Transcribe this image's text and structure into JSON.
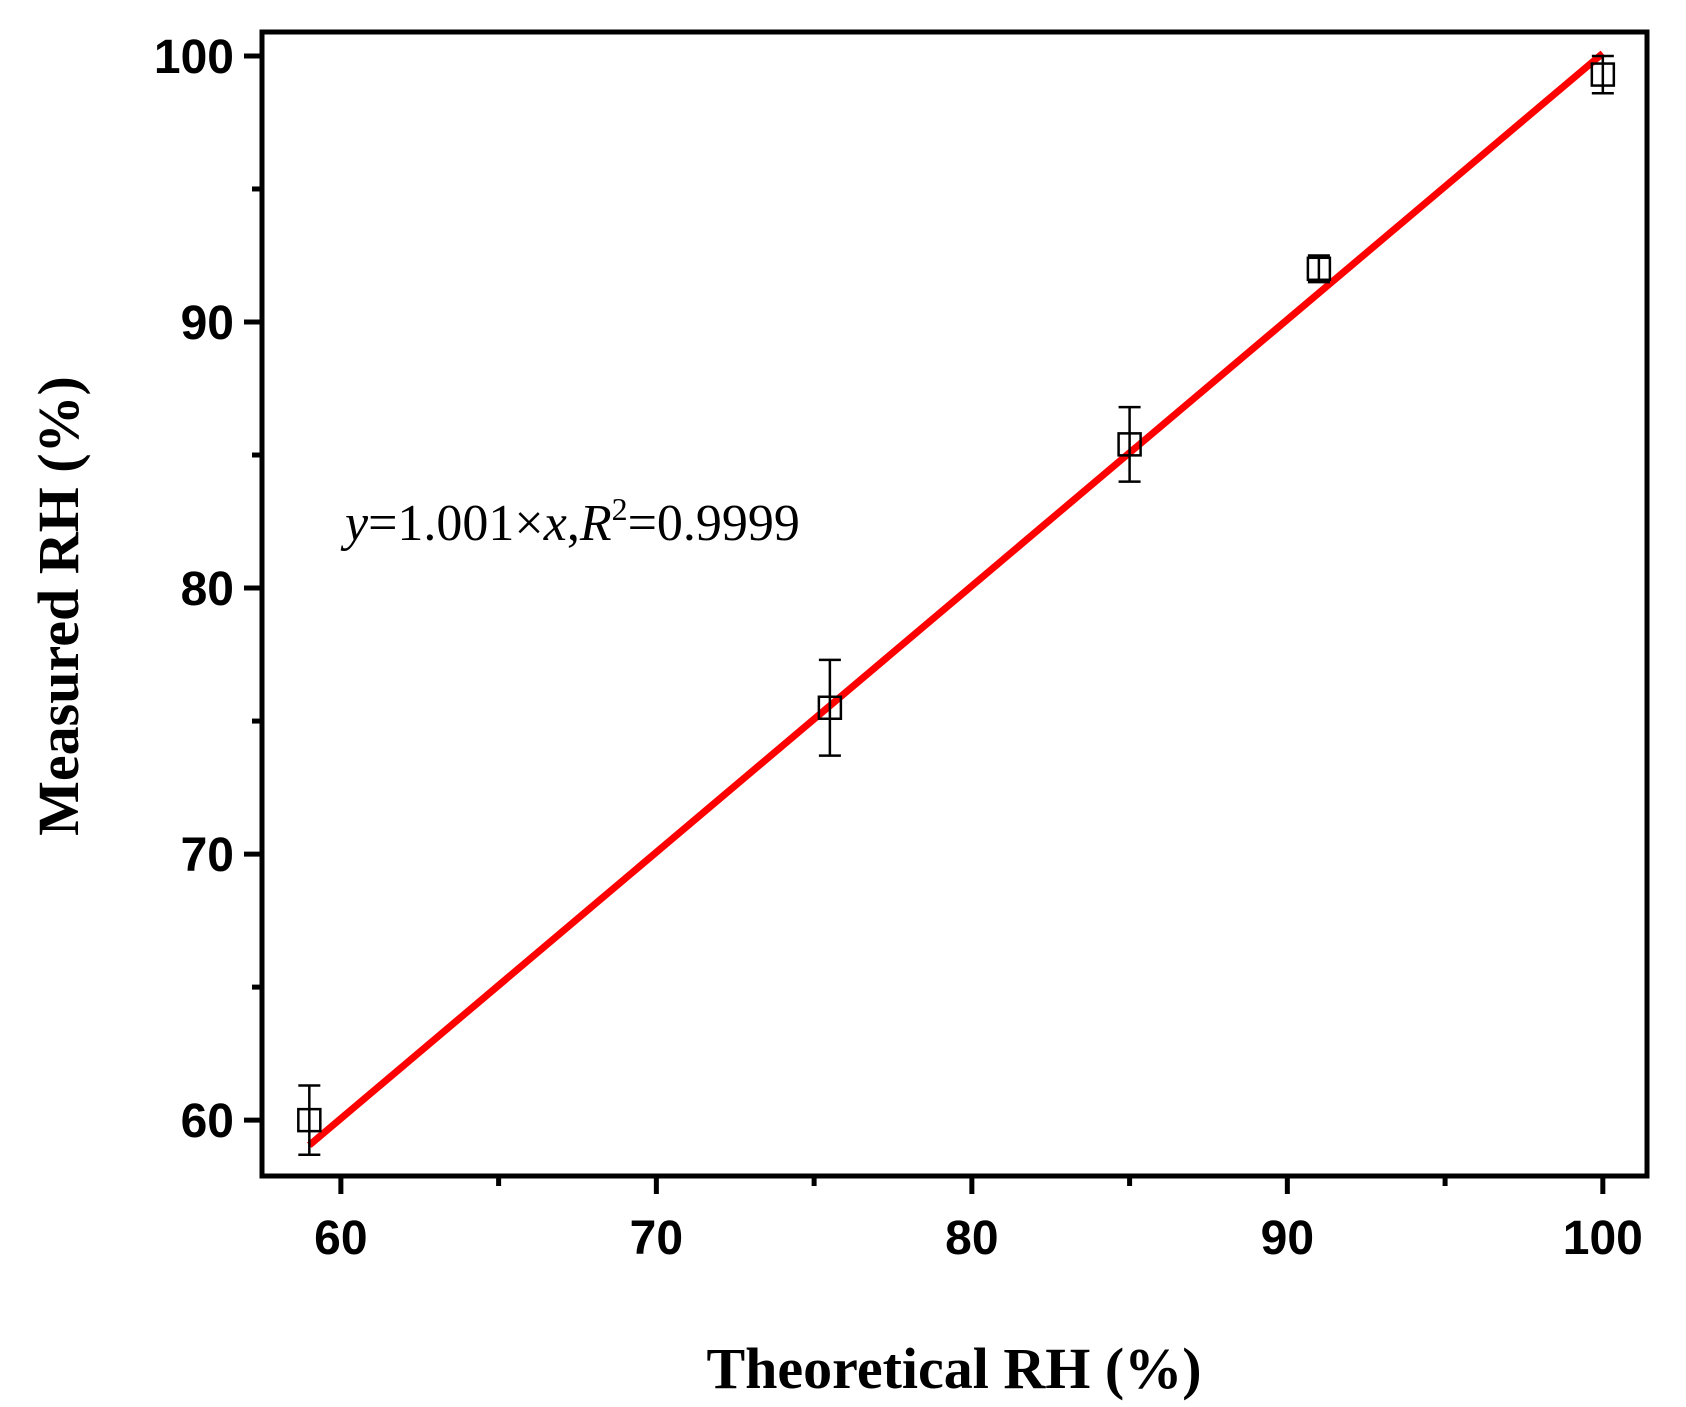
{
  "chart_data": {
    "type": "scatter",
    "xlabel": "Theoretical RH (%)",
    "ylabel": "Measured RH (%)",
    "xlim": [
      57.5,
      101.4
    ],
    "ylim": [
      57.9,
      100.9
    ],
    "xticks": [
      60,
      70,
      80,
      90,
      100
    ],
    "yticks": [
      60,
      70,
      80,
      90,
      100
    ],
    "x_minor_ticks": [
      65,
      75,
      85,
      95
    ],
    "y_minor_ticks": [
      65,
      75,
      85,
      95
    ],
    "grid": false,
    "points": [
      {
        "x": 59.0,
        "y": 60.0,
        "err": 1.3
      },
      {
        "x": 75.5,
        "y": 75.5,
        "err": 1.8
      },
      {
        "x": 85.0,
        "y": 85.4,
        "err": 1.4
      },
      {
        "x": 91.0,
        "y": 92.0,
        "err": 0.5
      },
      {
        "x": 100.0,
        "y": 99.3,
        "err": 0.7
      }
    ],
    "fit_line": {
      "slope": 1.001,
      "x_range": [
        59.0,
        100.0
      ],
      "color": "#ff0000"
    },
    "annotation": {
      "y_var": "y",
      "eq_text": "=1.001×",
      "x_var": "x",
      "sep": ",",
      "r_var": "R",
      "r_sup": "2",
      "r_value": "=0.9999"
    },
    "marker_color": "#000000"
  }
}
